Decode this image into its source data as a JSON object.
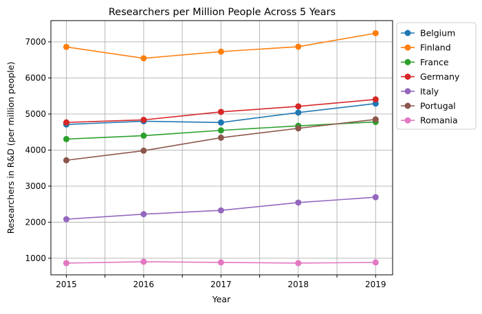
{
  "chart_data": {
    "type": "line",
    "title": "Researchers per Million People Across 5 Years",
    "xlabel": "Year",
    "ylabel": "Researchers in R&D (per million people)",
    "x": [
      2015,
      2016,
      2017,
      2018,
      2019
    ],
    "xticks": [
      "2015",
      "2016",
      "2017",
      "2018",
      "2019"
    ],
    "yticks": [
      "1000",
      "2000",
      "3000",
      "4000",
      "5000",
      "6000",
      "7000"
    ],
    "xlim": [
      2014.8,
      2019.22
    ],
    "ylim": [
      540,
      7590
    ],
    "grid": true,
    "legend_placement": "outside-top-right",
    "series": [
      {
        "name": "Belgium",
        "color": "#1f77b4",
        "values": [
          4710,
          4800,
          4765,
          5040,
          5290
        ]
      },
      {
        "name": "Finland",
        "color": "#ff7f0e",
        "values": [
          6860,
          6545,
          6730,
          6867,
          7240
        ]
      },
      {
        "name": "France",
        "color": "#2ca02c",
        "values": [
          4305,
          4400,
          4546,
          4672,
          4780
        ]
      },
      {
        "name": "Germany",
        "color": "#d62728",
        "values": [
          4767,
          4837,
          5059,
          5211,
          5405
        ]
      },
      {
        "name": "Italy",
        "color": "#9467bd",
        "values": [
          2083,
          2223,
          2327,
          2544,
          2692
        ]
      },
      {
        "name": "Portugal",
        "color": "#8c564b",
        "values": [
          3717,
          3983,
          4343,
          4603,
          4850
        ]
      },
      {
        "name": "Romania",
        "color": "#e377c2",
        "values": [
          865,
          904,
          885,
          865,
          885
        ]
      }
    ]
  }
}
